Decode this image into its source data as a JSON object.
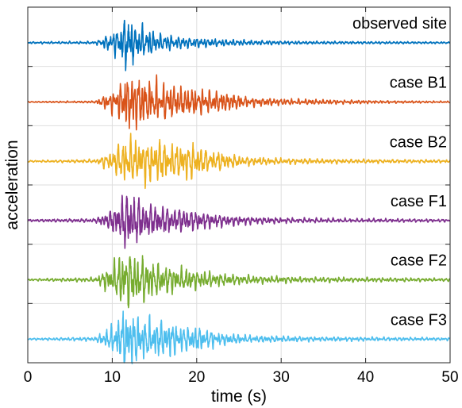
{
  "chart_data": {
    "type": "line",
    "title": "",
    "xlabel": "time (s)",
    "ylabel": "acceleration",
    "xlim": [
      0,
      50
    ],
    "xticks": [
      0,
      10,
      20,
      30,
      40,
      50
    ],
    "xtick_labels": [
      "0",
      "10",
      "20",
      "30",
      "40",
      "50"
    ],
    "grid": true,
    "y_tick_labels_shown": false,
    "legend": "none",
    "layout": "stacked-offset-traces",
    "series": [
      {
        "name": "observed site",
        "color": "#0072BD",
        "envelope": [
          [
            0,
            0.03
          ],
          [
            8,
            0.04
          ],
          [
            10,
            0.3
          ],
          [
            11,
            0.55
          ],
          [
            11.8,
            1.0
          ],
          [
            12.5,
            0.55
          ],
          [
            14,
            0.45
          ],
          [
            15,
            0.32
          ],
          [
            17,
            0.22
          ],
          [
            19,
            0.16
          ],
          [
            22,
            0.12
          ],
          [
            26,
            0.08
          ],
          [
            32,
            0.05
          ],
          [
            40,
            0.04
          ],
          [
            50,
            0.03
          ]
        ]
      },
      {
        "name": "case B1",
        "color": "#D95319",
        "envelope": [
          [
            0,
            0.02
          ],
          [
            8,
            0.04
          ],
          [
            10.5,
            0.5
          ],
          [
            11.5,
            1.0
          ],
          [
            13,
            0.95
          ],
          [
            14.5,
            0.8
          ],
          [
            16,
            0.7
          ],
          [
            18,
            0.55
          ],
          [
            20,
            0.48
          ],
          [
            22,
            0.4
          ],
          [
            24,
            0.34
          ],
          [
            26,
            0.18
          ],
          [
            30,
            0.12
          ],
          [
            36,
            0.08
          ],
          [
            42,
            0.05
          ],
          [
            50,
            0.03
          ]
        ]
      },
      {
        "name": "case B2",
        "color": "#EDB120",
        "envelope": [
          [
            0,
            0.03
          ],
          [
            8,
            0.06
          ],
          [
            10,
            0.35
          ],
          [
            11.5,
            0.75
          ],
          [
            13,
            0.7
          ],
          [
            15,
            0.75
          ],
          [
            16,
            0.62
          ],
          [
            18,
            0.55
          ],
          [
            19.5,
            0.6
          ],
          [
            21,
            0.42
          ],
          [
            23,
            0.28
          ],
          [
            26,
            0.15
          ],
          [
            30,
            0.1
          ],
          [
            38,
            0.07
          ],
          [
            50,
            0.05
          ]
        ]
      },
      {
        "name": "case F1",
        "color": "#7E2F8E",
        "envelope": [
          [
            0,
            0.04
          ],
          [
            8,
            0.07
          ],
          [
            10,
            0.4
          ],
          [
            11.5,
            1.0
          ],
          [
            13,
            0.8
          ],
          [
            15,
            0.55
          ],
          [
            17,
            0.45
          ],
          [
            19,
            0.4
          ],
          [
            21,
            0.3
          ],
          [
            23,
            0.22
          ],
          [
            26,
            0.14
          ],
          [
            30,
            0.1
          ],
          [
            38,
            0.07
          ],
          [
            50,
            0.05
          ]
        ]
      },
      {
        "name": "case F2",
        "color": "#77AC30",
        "envelope": [
          [
            0,
            0.03
          ],
          [
            8,
            0.06
          ],
          [
            10,
            0.4
          ],
          [
            11.5,
            0.85
          ],
          [
            12.5,
            0.7
          ],
          [
            14,
            0.55
          ],
          [
            16,
            0.42
          ],
          [
            18,
            0.32
          ],
          [
            20,
            0.25
          ],
          [
            23,
            0.16
          ],
          [
            27,
            0.1
          ],
          [
            34,
            0.07
          ],
          [
            50,
            0.04
          ]
        ]
      },
      {
        "name": "case F3",
        "color": "#4DBEEE",
        "envelope": [
          [
            0,
            0.03
          ],
          [
            8,
            0.07
          ],
          [
            10,
            0.45
          ],
          [
            11.5,
            1.0
          ],
          [
            13,
            0.8
          ],
          [
            15,
            0.65
          ],
          [
            16.5,
            0.62
          ],
          [
            18.5,
            0.45
          ],
          [
            20.5,
            0.4
          ],
          [
            23,
            0.2
          ],
          [
            27,
            0.12
          ],
          [
            34,
            0.08
          ],
          [
            50,
            0.05
          ]
        ]
      }
    ]
  }
}
